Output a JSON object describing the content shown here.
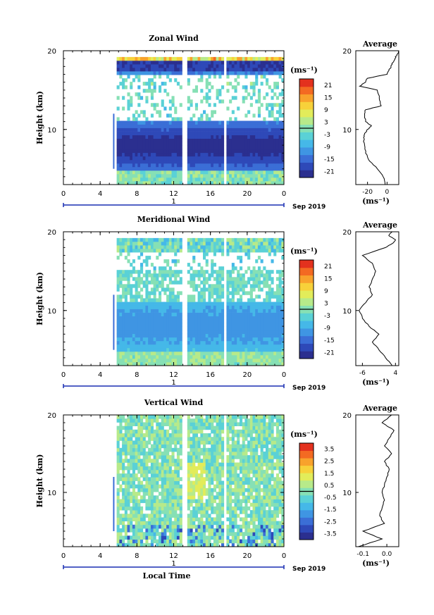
{
  "chart_data": [
    {
      "type": "heatmap",
      "title": "Zonal Wind",
      "ylabel": "Height (km)",
      "xlabel": "",
      "x_ticks": [
        "0",
        "4",
        "8",
        "12",
        "16",
        "20",
        "0"
      ],
      "y_ticks": [
        "20",
        "10"
      ],
      "xlim": [
        0,
        24
      ],
      "ylim": [
        3,
        20
      ],
      "date_label": "Sep 2019",
      "day_marker": "1",
      "colorbar": {
        "unit": "(ms⁻¹)",
        "ticks": [
          "21",
          "15",
          "9",
          "3",
          "-3",
          "-9",
          "-15",
          "-21"
        ],
        "range": [
          -24,
          24
        ]
      },
      "average": {
        "title": "Average",
        "unit": "(ms⁻¹)",
        "x_ticks": [
          "-20",
          "0"
        ],
        "xlim": [
          -32,
          12
        ],
        "y_ticks": [
          "20",
          "10"
        ],
        "height_km": [
          3,
          4,
          5,
          6,
          7,
          8,
          9,
          9.5,
          10,
          10.5,
          11,
          12,
          12.5,
          13,
          14,
          15,
          15.5,
          16,
          16.5,
          17,
          17.5,
          18,
          18.5,
          19,
          19.5,
          20
        ],
        "value": [
          -2,
          -4,
          -10,
          -18,
          -22,
          -23,
          -24,
          -23,
          -20,
          -16,
          -22,
          -23,
          -22,
          -6,
          -8,
          -10,
          -28,
          -22,
          -20,
          0,
          2,
          4,
          6,
          8,
          10,
          12
        ]
      },
      "fields": {
        "dominant": "westward (negative) flow -10 to -21 ms-1 between 5 and 11 km",
        "data_start_local_time": 5.8,
        "data_gaps_local_time": [
          13.2,
          17.6
        ]
      }
    },
    {
      "type": "heatmap",
      "title": "Meridional Wind",
      "ylabel": "Height (km)",
      "xlabel": "",
      "x_ticks": [
        "0",
        "4",
        "8",
        "12",
        "16",
        "20",
        "0"
      ],
      "y_ticks": [
        "20",
        "10"
      ],
      "xlim": [
        0,
        24
      ],
      "ylim": [
        3,
        20
      ],
      "date_label": "Sep 2019",
      "day_marker": "1",
      "colorbar": {
        "unit": "(ms⁻¹)",
        "ticks": [
          "21",
          "15",
          "9",
          "3",
          "-3",
          "-9",
          "-15",
          "-21"
        ],
        "range": [
          -24,
          24
        ]
      },
      "average": {
        "title": "Average",
        "unit": "(ms⁻¹)",
        "x_ticks": [
          "-6",
          "4"
        ],
        "xlim": [
          -8,
          5
        ],
        "y_ticks": [
          "20",
          "10"
        ],
        "height_km": [
          3,
          4,
          5,
          6,
          7,
          8,
          9,
          10,
          11,
          12,
          13,
          14,
          15,
          16,
          17,
          18,
          18.5,
          19,
          19.5,
          20
        ],
        "value": [
          3,
          1,
          -1,
          -3,
          -1,
          -4,
          -6,
          -7,
          -5,
          -3,
          -4,
          -3,
          -2,
          -3,
          -6,
          1,
          3,
          4,
          2,
          3
        ]
      },
      "fields": {
        "dominant": "weak southward (negative) flow -3 to -10 ms-1",
        "data_start_local_time": 5.8,
        "data_gaps_local_time": [
          13.2,
          17.6
        ]
      }
    },
    {
      "type": "heatmap",
      "title": "Vertical Wind",
      "ylabel": "Height (km)",
      "xlabel": "Local Time",
      "x_ticks": [
        "0",
        "4",
        "8",
        "12",
        "16",
        "20",
        "0"
      ],
      "y_ticks": [
        "20",
        "10"
      ],
      "xlim": [
        0,
        24
      ],
      "ylim": [
        3,
        20
      ],
      "date_label": "Sep 2019",
      "day_marker": "1",
      "colorbar": {
        "unit": "(ms⁻¹)",
        "ticks": [
          "3.5",
          "2.5",
          "1.5",
          "0.5",
          "-0.5",
          "-1.5",
          "-2.5",
          "-3.5"
        ],
        "range": [
          -4,
          4
        ]
      },
      "average": {
        "title": "Average",
        "unit": "(ms⁻¹)",
        "x_ticks": [
          "-0.1",
          "0.0"
        ],
        "xlim": [
          -0.13,
          0.05
        ],
        "y_ticks": [
          "20",
          "10"
        ],
        "height_km": [
          3,
          4,
          5,
          6,
          7,
          8,
          9,
          10,
          11,
          12,
          13,
          14,
          15,
          16,
          17,
          18,
          19,
          20
        ],
        "value": [
          -0.12,
          -0.02,
          -0.1,
          -0.01,
          -0.03,
          -0.02,
          -0.01,
          -0.02,
          -0.01,
          0.0,
          0.01,
          -0.01,
          0.02,
          -0.01,
          0.01,
          0.03,
          -0.02,
          0.02
        ]
      },
      "fields": {
        "dominant": "near-zero vertical motion, mostly -0.5 to 0.5 ms-1",
        "data_start_local_time": 5.8,
        "data_gaps_local_time": [
          13.2,
          17.6
        ]
      }
    }
  ],
  "colors": {
    "scale": [
      "#2b2f8f",
      "#2e49b8",
      "#3b6ed6",
      "#3f95e3",
      "#45b8e8",
      "#5ad1d6",
      "#86e0b5",
      "#b7ea8a",
      "#e2ec5a",
      "#f7d13a",
      "#f8a22c",
      "#f36a22",
      "#e3311e"
    ],
    "contour": "#000000",
    "axis": "#000000",
    "gap": "#ffffff",
    "day_bar": "#1a2fb3"
  }
}
